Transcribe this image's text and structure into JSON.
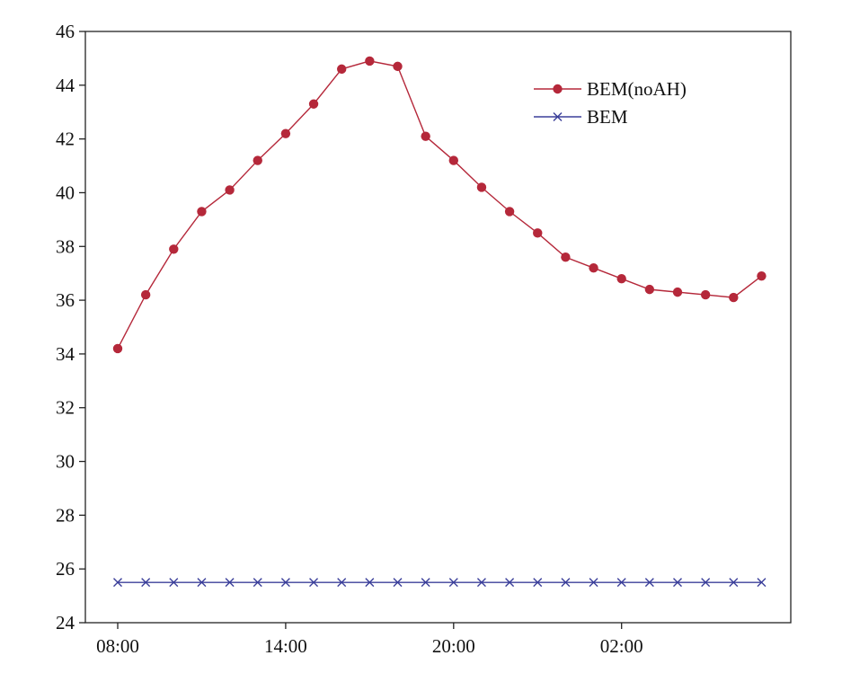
{
  "chart_data": {
    "type": "line",
    "title": "",
    "xlabel": "",
    "ylabel": "",
    "categories": [
      "08:00",
      "09:00",
      "10:00",
      "11:00",
      "12:00",
      "13:00",
      "14:00",
      "15:00",
      "16:00",
      "17:00",
      "18:00",
      "19:00",
      "20:00",
      "21:00",
      "22:00",
      "23:00",
      "00:00",
      "01:00",
      "02:00",
      "03:00",
      "04:00",
      "05:00",
      "06:00",
      "07:00"
    ],
    "x_tick_labels": [
      "08:00",
      "14:00",
      "20:00",
      "02:00"
    ],
    "ylim": [
      24,
      46
    ],
    "y_ticks": [
      24,
      26,
      28,
      30,
      32,
      34,
      36,
      38,
      40,
      42,
      44,
      46
    ],
    "grid": false,
    "legend_position": "top-right",
    "series": [
      {
        "name": "BEM(noAH)",
        "color": "#b5283a",
        "marker": "circle",
        "values": [
          34.2,
          36.2,
          37.9,
          39.3,
          40.1,
          41.2,
          42.2,
          43.3,
          44.6,
          44.9,
          44.7,
          42.1,
          41.2,
          40.2,
          39.3,
          38.5,
          37.6,
          37.2,
          36.8,
          36.4,
          36.3,
          36.2,
          36.1,
          36.9
        ]
      },
      {
        "name": "BEM",
        "color": "#3b3f9a",
        "marker": "x",
        "values": [
          25.5,
          25.5,
          25.5,
          25.5,
          25.5,
          25.5,
          25.5,
          25.5,
          25.5,
          25.5,
          25.5,
          25.5,
          25.5,
          25.5,
          25.5,
          25.5,
          25.5,
          25.5,
          25.5,
          25.5,
          25.5,
          25.5,
          25.5,
          25.5
        ]
      }
    ]
  }
}
